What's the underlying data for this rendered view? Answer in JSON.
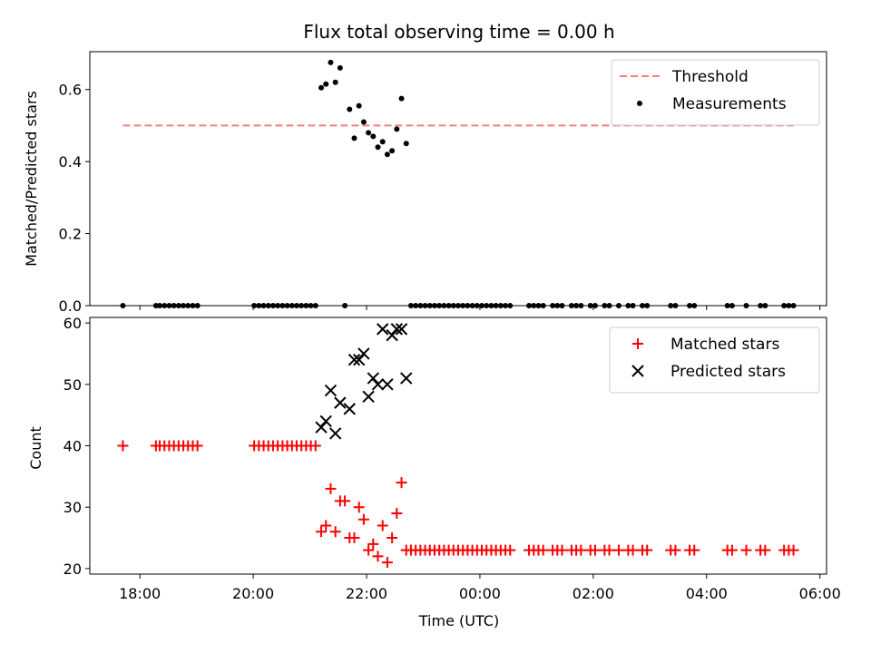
{
  "chart_data": [
    {
      "type": "scatter",
      "title": "Flux total observing time = 0.00 h",
      "xlabel": "",
      "ylabel": "Matched/Predicted stars",
      "xlim": [
        "17:07",
        "30:07"
      ],
      "ylim": [
        0,
        0.705
      ],
      "yticks": [
        "0.0",
        "0.2",
        "0.4",
        "0.6"
      ],
      "grid": false,
      "legend_position": "top-right",
      "threshold": {
        "name": "Threshold",
        "value": 0.5,
        "x_range": [
          "17:42",
          "29:32"
        ],
        "color": "#f08080",
        "style": "dashed"
      },
      "series": [
        {
          "name": "Measurements",
          "marker": "dot",
          "color": "#000000",
          "points": [
            [
              "17:42",
              0
            ],
            [
              "18:17",
              0
            ],
            [
              "18:21",
              0
            ],
            [
              "18:26",
              0
            ],
            [
              "18:31",
              0
            ],
            [
              "18:36",
              0
            ],
            [
              "18:41",
              0
            ],
            [
              "18:46",
              0
            ],
            [
              "18:51",
              0
            ],
            [
              "18:56",
              0
            ],
            [
              "19:01",
              0
            ],
            [
              "20:01",
              0
            ],
            [
              "20:06",
              0
            ],
            [
              "20:11",
              0
            ],
            [
              "20:16",
              0
            ],
            [
              "20:21",
              0
            ],
            [
              "20:26",
              0
            ],
            [
              "20:31",
              0
            ],
            [
              "20:36",
              0
            ],
            [
              "20:41",
              0
            ],
            [
              "20:46",
              0
            ],
            [
              "20:51",
              0
            ],
            [
              "20:56",
              0
            ],
            [
              "21:01",
              0
            ],
            [
              "21:06",
              0
            ],
            [
              "21:12",
              0.605
            ],
            [
              "21:17",
              0.615
            ],
            [
              "21:22",
              0.675
            ],
            [
              "21:27",
              0.62
            ],
            [
              "21:32",
              0.66
            ],
            [
              "21:37",
              0
            ],
            [
              "21:42",
              0.545
            ],
            [
              "21:47",
              0.465
            ],
            [
              "21:52",
              0.555
            ],
            [
              "21:57",
              0.51
            ],
            [
              "22:02",
              0.48
            ],
            [
              "22:07",
              0.47
            ],
            [
              "22:12",
              0.44
            ],
            [
              "22:17",
              0.455
            ],
            [
              "22:22",
              0.42
            ],
            [
              "22:27",
              0.43
            ],
            [
              "22:32",
              0.49
            ],
            [
              "22:37",
              0.575
            ],
            [
              "22:42",
              0.45
            ],
            [
              "22:47",
              0
            ],
            [
              "22:52",
              0
            ],
            [
              "22:57",
              0
            ],
            [
              "23:02",
              0
            ],
            [
              "23:07",
              0
            ],
            [
              "23:12",
              0
            ],
            [
              "23:17",
              0
            ],
            [
              "23:22",
              0
            ],
            [
              "23:27",
              0
            ],
            [
              "23:32",
              0
            ],
            [
              "23:37",
              0
            ],
            [
              "23:42",
              0
            ],
            [
              "23:47",
              0
            ],
            [
              "23:52",
              0
            ],
            [
              "23:57",
              0
            ],
            [
              "24:02",
              0
            ],
            [
              "24:07",
              0
            ],
            [
              "24:12",
              0
            ],
            [
              "24:17",
              0
            ],
            [
              "24:22",
              0
            ],
            [
              "24:27",
              0
            ],
            [
              "24:32",
              0
            ],
            [
              "24:52",
              0
            ],
            [
              "24:57",
              0
            ],
            [
              "25:02",
              0
            ],
            [
              "25:07",
              0
            ],
            [
              "25:17",
              0
            ],
            [
              "25:22",
              0
            ],
            [
              "25:27",
              0
            ],
            [
              "25:37",
              0
            ],
            [
              "25:42",
              0
            ],
            [
              "25:47",
              0
            ],
            [
              "25:57",
              0
            ],
            [
              "26:02",
              0
            ],
            [
              "26:12",
              0
            ],
            [
              "26:17",
              0
            ],
            [
              "26:27",
              0
            ],
            [
              "26:37",
              0
            ],
            [
              "26:42",
              0
            ],
            [
              "26:52",
              0
            ],
            [
              "26:57",
              0
            ],
            [
              "27:22",
              0
            ],
            [
              "27:27",
              0
            ],
            [
              "27:42",
              0
            ],
            [
              "27:47",
              0
            ],
            [
              "28:22",
              0
            ],
            [
              "28:27",
              0
            ],
            [
              "28:42",
              0
            ],
            [
              "28:57",
              0
            ],
            [
              "29:02",
              0
            ],
            [
              "29:22",
              0
            ],
            [
              "29:27",
              0
            ],
            [
              "29:32",
              0
            ]
          ]
        }
      ]
    },
    {
      "type": "scatter",
      "title": "",
      "xlabel": "Time (UTC)",
      "ylabel": "Count",
      "xlim": [
        "17:07",
        "30:07"
      ],
      "ylim": [
        19.1,
        60.9
      ],
      "xticks": [
        {
          "at": "18:00",
          "label": "18:00"
        },
        {
          "at": "20:00",
          "label": "20:00"
        },
        {
          "at": "22:00",
          "label": "22:00"
        },
        {
          "at": "24:00",
          "label": "00:00"
        },
        {
          "at": "26:00",
          "label": "02:00"
        },
        {
          "at": "28:00",
          "label": "04:00"
        },
        {
          "at": "30:00",
          "label": "06:00"
        }
      ],
      "yticks": [
        "20",
        "30",
        "40",
        "50",
        "60"
      ],
      "grid": false,
      "legend_position": "top-right",
      "series": [
        {
          "name": "Matched stars",
          "marker": "plus",
          "color": "#ff0000",
          "points": [
            [
              "17:42",
              40
            ],
            [
              "18:17",
              40
            ],
            [
              "18:21",
              40
            ],
            [
              "18:26",
              40
            ],
            [
              "18:31",
              40
            ],
            [
              "18:36",
              40
            ],
            [
              "18:41",
              40
            ],
            [
              "18:46",
              40
            ],
            [
              "18:51",
              40
            ],
            [
              "18:56",
              40
            ],
            [
              "19:01",
              40
            ],
            [
              "20:01",
              40
            ],
            [
              "20:06",
              40
            ],
            [
              "20:11",
              40
            ],
            [
              "20:16",
              40
            ],
            [
              "20:21",
              40
            ],
            [
              "20:26",
              40
            ],
            [
              "20:31",
              40
            ],
            [
              "20:36",
              40
            ],
            [
              "20:41",
              40
            ],
            [
              "20:46",
              40
            ],
            [
              "20:51",
              40
            ],
            [
              "20:56",
              40
            ],
            [
              "21:01",
              40
            ],
            [
              "21:06",
              40
            ],
            [
              "21:12",
              26
            ],
            [
              "21:17",
              27
            ],
            [
              "21:22",
              33
            ],
            [
              "21:27",
              26
            ],
            [
              "21:32",
              31
            ],
            [
              "21:37",
              31
            ],
            [
              "21:42",
              25
            ],
            [
              "21:47",
              25
            ],
            [
              "21:52",
              30
            ],
            [
              "21:57",
              28
            ],
            [
              "22:02",
              23
            ],
            [
              "22:07",
              24
            ],
            [
              "22:12",
              22
            ],
            [
              "22:17",
              27
            ],
            [
              "22:22",
              21
            ],
            [
              "22:27",
              25
            ],
            [
              "22:32",
              29
            ],
            [
              "22:37",
              34
            ],
            [
              "22:42",
              23
            ],
            [
              "22:47",
              23
            ],
            [
              "22:52",
              23
            ],
            [
              "22:57",
              23
            ],
            [
              "23:02",
              23
            ],
            [
              "23:07",
              23
            ],
            [
              "23:12",
              23
            ],
            [
              "23:17",
              23
            ],
            [
              "23:22",
              23
            ],
            [
              "23:27",
              23
            ],
            [
              "23:32",
              23
            ],
            [
              "23:37",
              23
            ],
            [
              "23:42",
              23
            ],
            [
              "23:47",
              23
            ],
            [
              "23:52",
              23
            ],
            [
              "23:57",
              23
            ],
            [
              "24:02",
              23
            ],
            [
              "24:07",
              23
            ],
            [
              "24:12",
              23
            ],
            [
              "24:17",
              23
            ],
            [
              "24:22",
              23
            ],
            [
              "24:27",
              23
            ],
            [
              "24:32",
              23
            ],
            [
              "24:52",
              23
            ],
            [
              "24:57",
              23
            ],
            [
              "25:02",
              23
            ],
            [
              "25:07",
              23
            ],
            [
              "25:17",
              23
            ],
            [
              "25:22",
              23
            ],
            [
              "25:27",
              23
            ],
            [
              "25:37",
              23
            ],
            [
              "25:42",
              23
            ],
            [
              "25:47",
              23
            ],
            [
              "25:57",
              23
            ],
            [
              "26:02",
              23
            ],
            [
              "26:12",
              23
            ],
            [
              "26:17",
              23
            ],
            [
              "26:27",
              23
            ],
            [
              "26:37",
              23
            ],
            [
              "26:42",
              23
            ],
            [
              "26:52",
              23
            ],
            [
              "26:57",
              23
            ],
            [
              "27:22",
              23
            ],
            [
              "27:27",
              23
            ],
            [
              "27:42",
              23
            ],
            [
              "27:47",
              23
            ],
            [
              "28:22",
              23
            ],
            [
              "28:27",
              23
            ],
            [
              "28:42",
              23
            ],
            [
              "28:57",
              23
            ],
            [
              "29:02",
              23
            ],
            [
              "29:22",
              23
            ],
            [
              "29:27",
              23
            ],
            [
              "29:32",
              23
            ]
          ]
        },
        {
          "name": "Predicted stars",
          "marker": "x",
          "color": "#000000",
          "points": [
            [
              "21:12",
              43
            ],
            [
              "21:17",
              44
            ],
            [
              "21:22",
              49
            ],
            [
              "21:27",
              42
            ],
            [
              "21:32",
              47
            ],
            [
              "21:42",
              46
            ],
            [
              "21:47",
              54
            ],
            [
              "21:52",
              54
            ],
            [
              "21:57",
              55
            ],
            [
              "22:02",
              48
            ],
            [
              "22:07",
              51
            ],
            [
              "22:12",
              50
            ],
            [
              "22:17",
              59
            ],
            [
              "22:22",
              50
            ],
            [
              "22:27",
              58
            ],
            [
              "22:32",
              59
            ],
            [
              "22:37",
              59
            ],
            [
              "22:42",
              51
            ]
          ]
        }
      ]
    }
  ]
}
